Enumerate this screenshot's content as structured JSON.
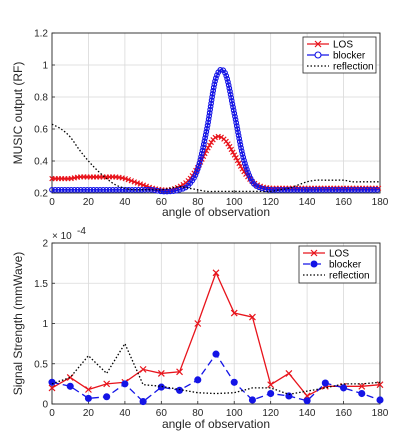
{
  "colors": {
    "los": "#e8141c",
    "blocker": "#1414e6",
    "reflection": "#000000",
    "axis": "#262626",
    "grid": "#d9d9d9"
  },
  "chart_data": [
    {
      "type": "line",
      "xlabel": "angle of observation",
      "ylabel": "MUSIC output (RF)",
      "xlim": [
        0,
        180
      ],
      "ylim": [
        0.2,
        1.2
      ],
      "xticks": [
        "0",
        "20",
        "40",
        "60",
        "80",
        "100",
        "120",
        "140",
        "160",
        "180"
      ],
      "yticks": [
        "0.2",
        "0.4",
        "0.6",
        "0.8",
        "1",
        "1.2"
      ],
      "grid": true,
      "legend_position": "top-right",
      "x": [
        0,
        5,
        10,
        15,
        20,
        25,
        30,
        35,
        40,
        45,
        50,
        55,
        60,
        65,
        70,
        75,
        80,
        85,
        90,
        95,
        100,
        105,
        110,
        115,
        120,
        125,
        130,
        135,
        140,
        145,
        150,
        155,
        160,
        165,
        170,
        175,
        180
      ],
      "series": [
        {
          "name": "LOS",
          "values": [
            0.29,
            0.29,
            0.29,
            0.3,
            0.3,
            0.3,
            0.3,
            0.3,
            0.29,
            0.27,
            0.25,
            0.23,
            0.22,
            0.22,
            0.24,
            0.28,
            0.36,
            0.47,
            0.55,
            0.53,
            0.44,
            0.34,
            0.27,
            0.24,
            0.23,
            0.23,
            0.23,
            0.23,
            0.23,
            0.23,
            0.23,
            0.23,
            0.23,
            0.23,
            0.23,
            0.23,
            0.23
          ]
        },
        {
          "name": "blocker",
          "values": [
            0.22,
            0.22,
            0.22,
            0.22,
            0.22,
            0.22,
            0.22,
            0.22,
            0.22,
            0.22,
            0.22,
            0.22,
            0.21,
            0.21,
            0.22,
            0.25,
            0.35,
            0.6,
            0.92,
            0.95,
            0.7,
            0.42,
            0.27,
            0.23,
            0.22,
            0.22,
            0.22,
            0.22,
            0.22,
            0.22,
            0.22,
            0.22,
            0.22,
            0.22,
            0.22,
            0.22,
            0.22
          ]
        },
        {
          "name": "reflection",
          "values": [
            0.63,
            0.6,
            0.55,
            0.47,
            0.4,
            0.34,
            0.29,
            0.25,
            0.23,
            0.22,
            0.22,
            0.22,
            0.22,
            0.23,
            0.24,
            0.23,
            0.22,
            0.21,
            0.21,
            0.21,
            0.21,
            0.21,
            0.21,
            0.21,
            0.21,
            0.22,
            0.23,
            0.25,
            0.27,
            0.28,
            0.28,
            0.28,
            0.28,
            0.27,
            0.27,
            0.27,
            0.27
          ]
        }
      ]
    },
    {
      "type": "line",
      "xlabel": "angle of observation",
      "ylabel": "Signal Strength (mmWave)",
      "exponent_label": "× 10",
      "exponent_power": "-4",
      "xlim": [
        0,
        180
      ],
      "ylim": [
        0,
        2
      ],
      "xticks": [
        "0",
        "20",
        "40",
        "60",
        "80",
        "100",
        "120",
        "140",
        "160",
        "180"
      ],
      "yticks": [
        "0",
        "0.5",
        "1",
        "1.5",
        "2"
      ],
      "grid": true,
      "legend_position": "top-right",
      "x": [
        0,
        10,
        20,
        30,
        40,
        50,
        60,
        70,
        80,
        90,
        100,
        110,
        120,
        130,
        140,
        150,
        160,
        170,
        180
      ],
      "series": [
        {
          "name": "LOS",
          "values": [
            0.2,
            0.33,
            0.18,
            0.25,
            0.27,
            0.43,
            0.38,
            0.4,
            1.0,
            1.63,
            1.13,
            1.08,
            0.24,
            0.38,
            0.1,
            0.22,
            0.22,
            0.22,
            0.24
          ]
        },
        {
          "name": "blocker",
          "values": [
            0.27,
            0.22,
            0.07,
            0.09,
            0.25,
            0.03,
            0.21,
            0.17,
            0.3,
            0.62,
            0.27,
            0.05,
            0.13,
            0.1,
            0.04,
            0.26,
            0.2,
            0.13,
            0.05
          ]
        },
        {
          "name": "reflection",
          "values": [
            0.25,
            0.33,
            0.6,
            0.38,
            0.75,
            0.24,
            0.22,
            0.18,
            0.14,
            0.13,
            0.14,
            0.2,
            0.2,
            0.12,
            0.16,
            0.2,
            0.25,
            0.25,
            0.27
          ]
        }
      ]
    }
  ]
}
